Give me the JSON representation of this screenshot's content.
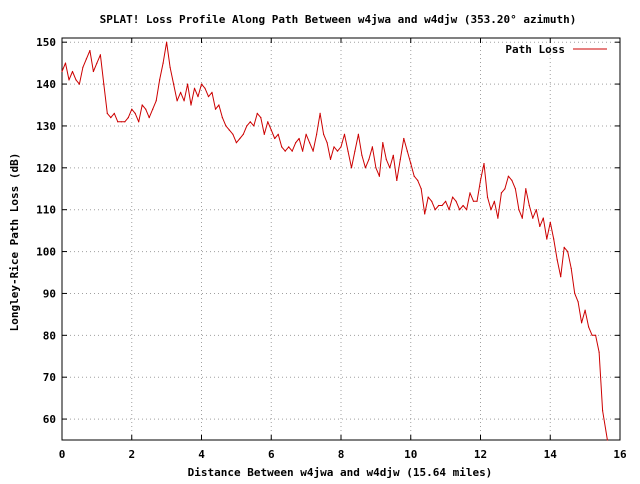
{
  "chart_data": {
    "type": "line",
    "title": "SPLAT! Loss Profile Along Path Between w4jwa and w4djw (353.20° azimuth)",
    "xlabel": "Distance Between w4jwa and w4djw (15.64 miles)",
    "ylabel": "Longley-Rice Path Loss (dB)",
    "xlim": [
      0,
      16
    ],
    "ylim": [
      55,
      151
    ],
    "xticks": [
      0,
      2,
      4,
      6,
      8,
      10,
      12,
      14,
      16
    ],
    "yticks": [
      60,
      70,
      80,
      90,
      100,
      110,
      120,
      130,
      140,
      150
    ],
    "grid": true,
    "legend_position": "top-right",
    "series": [
      {
        "name": "Path Loss",
        "color": "#cc0000",
        "x": [
          0.0,
          0.1,
          0.2,
          0.3,
          0.4,
          0.5,
          0.6,
          0.7,
          0.8,
          0.9,
          1.0,
          1.1,
          1.2,
          1.3,
          1.4,
          1.5,
          1.6,
          1.7,
          1.8,
          1.9,
          2.0,
          2.1,
          2.2,
          2.3,
          2.4,
          2.5,
          2.6,
          2.7,
          2.8,
          2.9,
          3.0,
          3.1,
          3.2,
          3.3,
          3.4,
          3.5,
          3.6,
          3.7,
          3.8,
          3.9,
          4.0,
          4.1,
          4.2,
          4.3,
          4.4,
          4.5,
          4.6,
          4.7,
          4.8,
          4.9,
          5.0,
          5.1,
          5.2,
          5.3,
          5.4,
          5.5,
          5.6,
          5.7,
          5.8,
          5.9,
          6.0,
          6.1,
          6.2,
          6.3,
          6.4,
          6.5,
          6.6,
          6.7,
          6.8,
          6.9,
          7.0,
          7.1,
          7.2,
          7.3,
          7.4,
          7.5,
          7.6,
          7.7,
          7.8,
          7.9,
          8.0,
          8.1,
          8.2,
          8.3,
          8.4,
          8.5,
          8.6,
          8.7,
          8.8,
          8.9,
          9.0,
          9.1,
          9.2,
          9.3,
          9.4,
          9.5,
          9.6,
          9.7,
          9.8,
          9.9,
          10.0,
          10.1,
          10.2,
          10.3,
          10.4,
          10.5,
          10.6,
          10.7,
          10.8,
          10.9,
          11.0,
          11.1,
          11.2,
          11.3,
          11.4,
          11.5,
          11.6,
          11.7,
          11.8,
          11.9,
          12.0,
          12.1,
          12.2,
          12.3,
          12.4,
          12.5,
          12.6,
          12.7,
          12.8,
          12.9,
          13.0,
          13.1,
          13.2,
          13.3,
          13.4,
          13.5,
          13.6,
          13.7,
          13.8,
          13.9,
          14.0,
          14.1,
          14.2,
          14.3,
          14.4,
          14.5,
          14.6,
          14.7,
          14.8,
          14.9,
          15.0,
          15.1,
          15.2,
          15.3,
          15.4,
          15.5,
          15.64
        ],
        "values": [
          143,
          145,
          141,
          143,
          141,
          140,
          144,
          146,
          148,
          143,
          145,
          147,
          140,
          133,
          132,
          133,
          131,
          131,
          131,
          132,
          134,
          133,
          131,
          135,
          134,
          132,
          134,
          136,
          141,
          145,
          150,
          144,
          140,
          136,
          138,
          136,
          140,
          135,
          139,
          137,
          140,
          139,
          137,
          138,
          134,
          135,
          132,
          130,
          129,
          128,
          126,
          127,
          128,
          130,
          131,
          130,
          133,
          132,
          128,
          131,
          129,
          127,
          128,
          125,
          124,
          125,
          124,
          126,
          127,
          124,
          128,
          126,
          124,
          128,
          133,
          128,
          126,
          122,
          125,
          124,
          125,
          128,
          124,
          120,
          124,
          128,
          123,
          120,
          122,
          125,
          120,
          118,
          126,
          122,
          120,
          123,
          117,
          122,
          127,
          124,
          121,
          118,
          117,
          115,
          109,
          113,
          112,
          110,
          111,
          111,
          112,
          110,
          113,
          112,
          110,
          111,
          110,
          114,
          112,
          112,
          117,
          121,
          113,
          110,
          112,
          108,
          114,
          115,
          118,
          117,
          115,
          110,
          108,
          115,
          111,
          108,
          110,
          106,
          108,
          103,
          107,
          103,
          98,
          94,
          101,
          100,
          96,
          90,
          88,
          83,
          86,
          82,
          80,
          80,
          76,
          62,
          55
        ]
      }
    ]
  }
}
